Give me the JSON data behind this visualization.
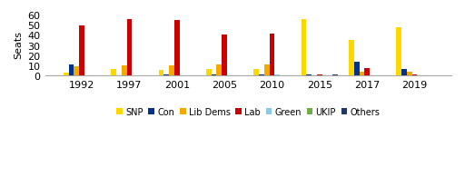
{
  "years": [
    1992,
    1997,
    2001,
    2005,
    2010,
    2015,
    2017,
    2019
  ],
  "parties": [
    "SNP",
    "Con",
    "Lib Dems",
    "Lab",
    "Green",
    "UKIP",
    "Others"
  ],
  "colors": [
    "#FFD700",
    "#00338D",
    "#F5A800",
    "#CC0000",
    "#87CEEB",
    "#70AD47",
    "#1F3864"
  ],
  "data": {
    "SNP": [
      3,
      6,
      5,
      6,
      6,
      56,
      35,
      48
    ],
    "Con": [
      11,
      0,
      1,
      1,
      1,
      1,
      13,
      6
    ],
    "Lib Dems": [
      9,
      10,
      10,
      11,
      11,
      0,
      4,
      4
    ],
    "Lab": [
      49,
      56,
      55,
      40,
      41,
      1,
      7,
      1
    ],
    "Green": [
      0,
      0,
      0,
      0,
      1,
      0,
      0,
      0
    ],
    "UKIP": [
      0,
      0,
      0,
      0,
      0,
      0,
      0,
      0
    ],
    "Others": [
      0,
      0,
      0,
      0,
      0,
      1,
      0,
      0
    ]
  },
  "ylabel": "Seats",
  "ylim": [
    0,
    62
  ],
  "yticks": [
    0,
    10,
    20,
    30,
    40,
    50,
    60
  ],
  "background_color": "#FFFFFF",
  "bar_width": 0.11
}
